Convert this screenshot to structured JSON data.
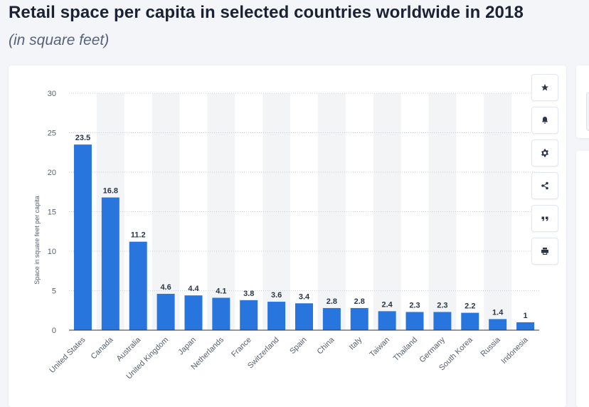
{
  "header": {
    "title": "Retail space per capita in selected countries worldwide in 2018",
    "subtitle": "(in square feet)"
  },
  "toolbar": {
    "buttons": [
      {
        "icon": "star-icon"
      },
      {
        "icon": "bell-icon"
      },
      {
        "icon": "gear-icon"
      },
      {
        "icon": "share-icon"
      },
      {
        "icon": "quote-icon"
      },
      {
        "icon": "print-icon"
      }
    ]
  },
  "colors": {
    "bar": "#2876dd",
    "band": "#f3f4f6",
    "grid": "#c9ced6",
    "axis": "#333333"
  },
  "chart_data": {
    "type": "bar",
    "title": "",
    "xlabel": "",
    "ylabel": "Space in square feet per capita",
    "ylim": [
      0,
      30
    ],
    "yticks": [
      0,
      5,
      10,
      15,
      20,
      25,
      30
    ],
    "grid": true,
    "categories": [
      "United States",
      "Canada",
      "Australia",
      "United Kingdom",
      "Japan",
      "Netherlands",
      "France",
      "Switzerland",
      "Spain",
      "China",
      "Italy",
      "Taiwan",
      "Thailand",
      "Germany",
      "South Korea",
      "Russia",
      "Indonesia"
    ],
    "values": [
      23.5,
      16.8,
      11.2,
      4.6,
      4.4,
      4.1,
      3.8,
      3.6,
      3.4,
      2.8,
      2.8,
      2.4,
      2.3,
      2.3,
      2.2,
      1.4,
      1
    ]
  }
}
